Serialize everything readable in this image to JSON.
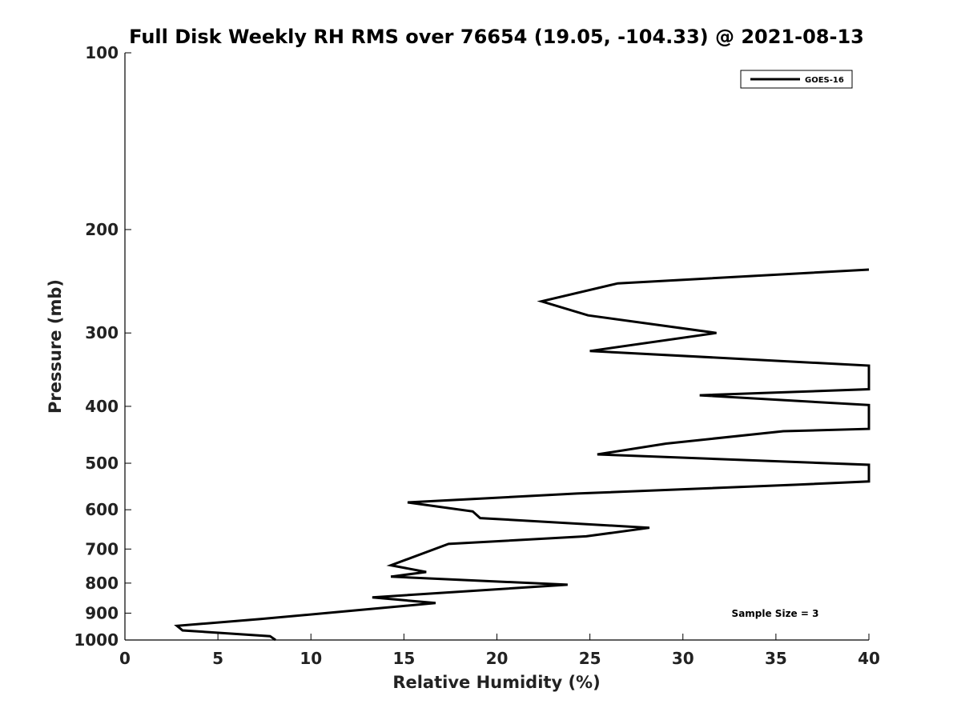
{
  "chart_data": {
    "type": "line",
    "title": "Full Disk Weekly RH RMS over 76654 (19.05, -104.33) @ 2021-08-13",
    "xlabel": "Relative Humidity (%)",
    "ylabel": "Pressure (mb)",
    "xlim": [
      0,
      40
    ],
    "ylim": [
      100,
      1000
    ],
    "yscale": "log",
    "yaxis_reversed": true,
    "grid": false,
    "x_ticks": [
      "0",
      "5",
      "10",
      "15",
      "20",
      "25",
      "30",
      "35",
      "40"
    ],
    "y_ticks": [
      "100",
      "200",
      "300",
      "400",
      "500",
      "600",
      "700",
      "800",
      "900",
      "1000"
    ],
    "legend_position": "top-right",
    "annotation": "Sample Size = 3",
    "series": [
      {
        "name": "GOES-16",
        "color": "#000000",
        "points": [
          {
            "x": 8.1,
            "p": 1000
          },
          {
            "x": 7.8,
            "p": 985
          },
          {
            "x": 3.1,
            "p": 963
          },
          {
            "x": 2.8,
            "p": 946
          },
          {
            "x": 7.3,
            "p": 921
          },
          {
            "x": 16.7,
            "p": 865
          },
          {
            "x": 13.3,
            "p": 846
          },
          {
            "x": 23.8,
            "p": 805
          },
          {
            "x": 14.3,
            "p": 780
          },
          {
            "x": 16.2,
            "p": 766
          },
          {
            "x": 14.3,
            "p": 746
          },
          {
            "x": 15.1,
            "p": 730
          },
          {
            "x": 17.4,
            "p": 686
          },
          {
            "x": 24.8,
            "p": 666
          },
          {
            "x": 28.2,
            "p": 644
          },
          {
            "x": 19.1,
            "p": 620
          },
          {
            "x": 18.7,
            "p": 604
          },
          {
            "x": 15.2,
            "p": 583
          },
          {
            "x": 24.3,
            "p": 563
          },
          {
            "x": 36.1,
            "p": 544
          },
          {
            "x": 40,
            "p": 537
          },
          {
            "x": 40,
            "p": 503
          },
          {
            "x": 25.4,
            "p": 483
          },
          {
            "x": 29.1,
            "p": 463
          },
          {
            "x": 35.4,
            "p": 441
          },
          {
            "x": 40,
            "p": 437
          },
          {
            "x": 40,
            "p": 398
          },
          {
            "x": 30.9,
            "p": 383
          },
          {
            "x": 40,
            "p": 374
          },
          {
            "x": 40,
            "p": 341
          },
          {
            "x": 25.0,
            "p": 322
          },
          {
            "x": 31.8,
            "p": 300
          },
          {
            "x": 24.9,
            "p": 280
          },
          {
            "x": 22.4,
            "p": 265
          },
          {
            "x": 26.5,
            "p": 247
          },
          {
            "x": 40,
            "p": 234
          }
        ]
      }
    ]
  }
}
